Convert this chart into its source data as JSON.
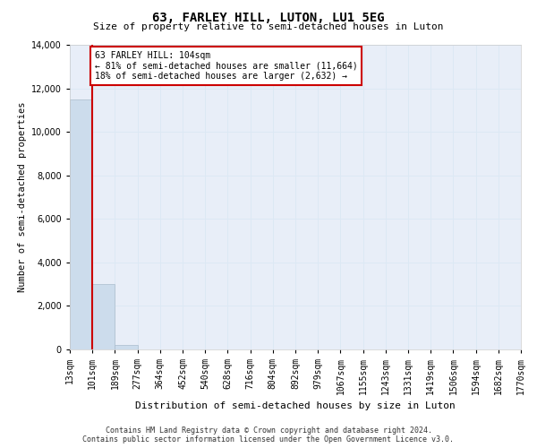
{
  "title_line1": "63, FARLEY HILL, LUTON, LU1 5EG",
  "title_line2": "Size of property relative to semi-detached houses in Luton",
  "xlabel": "Distribution of semi-detached houses by size in Luton",
  "ylabel": "Number of semi-detached properties",
  "bin_labels": [
    "13sqm",
    "101sqm",
    "189sqm",
    "277sqm",
    "364sqm",
    "452sqm",
    "540sqm",
    "628sqm",
    "716sqm",
    "804sqm",
    "892sqm",
    "979sqm",
    "1067sqm",
    "1155sqm",
    "1243sqm",
    "1331sqm",
    "1419sqm",
    "1506sqm",
    "1594sqm",
    "1682sqm",
    "1770sqm"
  ],
  "bar_values": [
    11500,
    3000,
    200,
    0,
    0,
    0,
    0,
    0,
    0,
    0,
    0,
    0,
    0,
    0,
    0,
    0,
    0,
    0,
    0,
    0
  ],
  "bar_color": "#ccdcec",
  "bar_edgecolor": "#aabccc",
  "annotation_line1": "63 FARLEY HILL: 104sqm",
  "annotation_line2": "← 81% of semi-detached houses are smaller (11,664)",
  "annotation_line3": "18% of semi-detached houses are larger (2,632) →",
  "red_line_color": "#cc0000",
  "annotation_box_edgecolor": "#cc0000",
  "annotation_box_facecolor": "#ffffff",
  "ylim": [
    0,
    14000
  ],
  "yticks": [
    0,
    2000,
    4000,
    6000,
    8000,
    10000,
    12000,
    14000
  ],
  "grid_color": "#dce8f4",
  "background_color": "#e8eef8",
  "footer_line1": "Contains HM Land Registry data © Crown copyright and database right 2024.",
  "footer_line2": "Contains public sector information licensed under the Open Government Licence v3.0."
}
